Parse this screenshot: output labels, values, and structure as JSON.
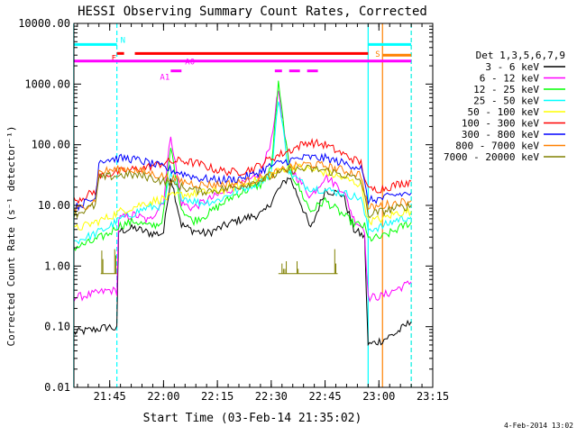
{
  "chart_data": {
    "type": "line",
    "title": "HESSI Observing Summary Count Rates, Corrected",
    "xlabel": "Start Time (03-Feb-14 21:35:02)",
    "ylabel": "Corrected Count Rate (s⁻¹ detector⁻¹)",
    "xlim": [
      "21:35:02",
      "23:15"
    ],
    "ylim": [
      0.01,
      10000
    ],
    "yscale": "log",
    "x_ticks": [
      "21:45",
      "22:00",
      "22:15",
      "22:30",
      "22:45",
      "23:00",
      "23:15"
    ],
    "y_ticks": [
      "0.01",
      "0.10",
      "1.00",
      "10.00",
      "100.00",
      "1000.00",
      "10000.00"
    ],
    "legend_title": "Det 1,3,5,6,7,9",
    "legend_position": "right",
    "timestamp": "4-Feb-2014 13:02",
    "series": [
      {
        "name": "3 - 6 keV",
        "color": "#000000",
        "x": [
          "21:35",
          "21:41",
          "21:45",
          "21:47",
          "21:47.5",
          "21:52",
          "21:56",
          "21:59",
          "22:00",
          "22:02",
          "22:05",
          "22:08",
          "22:12",
          "22:20",
          "22:28",
          "22:32",
          "22:35",
          "22:38",
          "22:41",
          "22:45",
          "22:50",
          "22:53",
          "22:56",
          "22:57",
          "23:01",
          "23:05",
          "23:08",
          "23:09"
        ],
        "y": [
          0.08,
          0.09,
          0.1,
          0.09,
          3.8,
          4.2,
          3.5,
          3.4,
          3.6,
          30,
          4.8,
          3.9,
          3.4,
          5.5,
          7.5,
          18,
          30,
          12,
          4,
          18,
          15,
          4,
          3,
          0.05,
          0.06,
          0.08,
          0.11,
          0.12
        ]
      },
      {
        "name": "6 - 12 keV",
        "color": "#ff00ff",
        "x": [
          "21:35",
          "21:41",
          "21:45",
          "21:47",
          "21:47.5",
          "21:52",
          "21:56",
          "21:59",
          "22:00",
          "22:02",
          "22:05",
          "22:08",
          "22:12",
          "22:20",
          "22:27",
          "22:30",
          "22:32",
          "22:35",
          "22:38",
          "22:41",
          "22:45",
          "22:50",
          "22:53",
          "22:56",
          "22:57",
          "23:01",
          "23:05",
          "23:08",
          "23:09"
        ],
        "y": [
          0.3,
          0.35,
          0.4,
          0.38,
          6,
          7,
          5.5,
          10,
          12,
          150,
          11,
          9,
          12,
          20,
          30,
          120,
          800,
          45,
          25,
          14,
          30,
          18,
          6,
          4,
          0.3,
          0.32,
          0.42,
          0.5,
          0.55
        ]
      },
      {
        "name": "12 - 25 keV",
        "color": "#00ff00",
        "x": [
          "21:35",
          "21:40",
          "21:45",
          "21:47",
          "21:52",
          "21:56",
          "21:59",
          "22:00",
          "22:02",
          "22:05",
          "22:08",
          "22:12",
          "22:20",
          "22:27",
          "22:30",
          "22:32",
          "22:35",
          "22:38",
          "22:41",
          "22:45",
          "22:50",
          "22:53",
          "22:56",
          "22:57",
          "23:01",
          "23:05",
          "23:08",
          "23:09"
        ],
        "y": [
          2,
          2.5,
          3.5,
          4.5,
          5.5,
          4.5,
          5,
          7,
          90,
          9,
          5.5,
          7,
          15,
          22,
          40,
          1000,
          40,
          18,
          8,
          12,
          7,
          5,
          4.5,
          2.8,
          3,
          4,
          5,
          5.2
        ]
      },
      {
        "name": "25 - 50 keV",
        "color": "#00ffff",
        "x": [
          "21:35",
          "21:40",
          "21:45",
          "21:48",
          "21:55",
          "22:00",
          "22:02",
          "22:05",
          "22:10",
          "22:15",
          "22:20",
          "22:25",
          "22:30",
          "22:32",
          "22:35",
          "22:40",
          "22:45",
          "22:50",
          "22:55",
          "22:57",
          "23:01",
          "23:05",
          "23:09"
        ],
        "y": [
          2.5,
          3.2,
          4.5,
          6,
          9,
          10,
          30,
          14,
          11,
          12,
          17,
          22,
          32,
          600,
          35,
          20,
          18,
          16,
          13,
          4,
          4.5,
          5.8,
          6.5
        ]
      },
      {
        "name": "50 - 100 keV",
        "color": "#ffff00",
        "x": [
          "21:35",
          "21:40",
          "21:45",
          "21:48",
          "21:55",
          "22:00",
          "22:05",
          "22:10",
          "22:15",
          "22:20",
          "22:25",
          "22:30",
          "22:35",
          "22:40",
          "22:45",
          "22:50",
          "22:55",
          "22:57",
          "23:01",
          "23:05",
          "23:09"
        ],
        "y": [
          4,
          5,
          6.5,
          8,
          11,
          13,
          15,
          16,
          17,
          20,
          25,
          32,
          45,
          40,
          35,
          28,
          22,
          5.5,
          6,
          7.5,
          8
        ]
      },
      {
        "name": "100 - 300 keV",
        "color": "#ff0000",
        "x": [
          "21:35",
          "21:38",
          "21:41",
          "21:42",
          "21:45",
          "21:50",
          "21:55",
          "22:00",
          "22:05",
          "22:10",
          "22:15",
          "22:20",
          "22:25",
          "22:30",
          "22:35",
          "22:40",
          "22:45",
          "22:50",
          "22:55",
          "22:57",
          "23:01",
          "23:05",
          "23:09"
        ],
        "y": [
          12,
          14,
          17,
          30,
          33,
          38,
          42,
          50,
          55,
          48,
          38,
          35,
          40,
          60,
          80,
          110,
          100,
          70,
          50,
          18,
          19,
          22,
          25
        ]
      },
      {
        "name": "300 - 800 keV",
        "color": "#0000ff",
        "x": [
          "21:35",
          "21:38",
          "21:41",
          "21:42",
          "21:45",
          "21:50",
          "21:55",
          "22:00",
          "22:05",
          "22:10",
          "22:15",
          "22:20",
          "22:25",
          "22:30",
          "22:35",
          "22:40",
          "22:45",
          "22:50",
          "22:55",
          "22:57",
          "23:01",
          "23:05",
          "23:09"
        ],
        "y": [
          9,
          11,
          13,
          55,
          58,
          60,
          52,
          42,
          34,
          28,
          26,
          27,
          32,
          45,
          55,
          62,
          60,
          50,
          42,
          12,
          13,
          15,
          16
        ]
      },
      {
        "name": "800 - 7000 keV",
        "color": "#ff8000",
        "x": [
          "21:35",
          "21:41",
          "21:42",
          "21:45",
          "21:50",
          "21:55",
          "22:00",
          "22:05",
          "22:10",
          "22:15",
          "22:20",
          "22:25",
          "22:30",
          "22:35",
          "22:40",
          "22:45",
          "22:50",
          "22:55",
          "22:57",
          "23:01",
          "23:05",
          "23:09"
        ],
        "y": [
          8,
          12,
          35,
          38,
          40,
          35,
          30,
          25,
          22,
          22,
          23,
          26,
          32,
          42,
          48,
          45,
          38,
          32,
          9,
          10,
          11,
          12
        ]
      },
      {
        "name": "7000 - 20000 keV",
        "color": "#808000",
        "x": [
          "21:35",
          "21:41",
          "21:42",
          "21:45",
          "21:50",
          "21:55",
          "22:00",
          "22:05",
          "22:10",
          "22:15",
          "22:20",
          "22:25",
          "22:30",
          "22:35",
          "22:40",
          "22:45",
          "22:50",
          "22:55",
          "22:57",
          "23:01",
          "23:05",
          "23:09"
        ],
        "y": [
          7,
          10,
          28,
          30,
          32,
          30,
          25,
          20,
          17,
          18,
          20,
          24,
          30,
          38,
          40,
          38,
          32,
          26,
          7,
          8,
          9,
          10
        ]
      }
    ],
    "spikes": {
      "color": "#808000",
      "baseline": 0.75,
      "x": [
        "21:42.8",
        "21:43.1",
        "21:46.4",
        "21:46.7",
        "22:33",
        "22:33.4",
        "22:33.8",
        "22:34.2",
        "22:37.2",
        "22:37.5",
        "22:47.7",
        "22:48"
      ],
      "y": [
        1.8,
        1.3,
        1.9,
        1.5,
        1.1,
        0.9,
        0.9,
        1.2,
        1.2,
        0.9,
        1.9,
        1.1
      ]
    },
    "flag_bars": [
      {
        "label": "N",
        "color": "#00ffff",
        "level": 4500,
        "spans": [
          [
            "21:35",
            "21:47"
          ],
          [
            "22:57",
            "23:09"
          ]
        ]
      },
      {
        "label": "F",
        "color": "#ff0000",
        "level": 3200,
        "spans": [
          [
            "21:47",
            "21:49"
          ],
          [
            "21:52",
            "22:57"
          ]
        ]
      },
      {
        "label": "S",
        "color": "#ff8000",
        "level": 3000,
        "spans": [
          [
            "23:01",
            "23:09"
          ]
        ]
      },
      {
        "label": "A0",
        "color": "#ff00ff",
        "level": 2400,
        "spans": [
          [
            "21:35",
            "23:09"
          ]
        ]
      },
      {
        "label": "A1",
        "color": "#ff00ff",
        "level": 1650,
        "spans": [
          [
            "22:02",
            "22:05"
          ],
          [
            "22:31",
            "22:33"
          ],
          [
            "22:35",
            "22:38"
          ],
          [
            "22:40",
            "22:43"
          ]
        ]
      }
    ],
    "vertical_markers": [
      {
        "x": "21:35",
        "color": "#00ffff",
        "style": "solid"
      },
      {
        "x": "21:47",
        "color": "#00ffff",
        "style": "dashed"
      },
      {
        "x": "22:57",
        "color": "#00ffff",
        "style": "solid"
      },
      {
        "x": "23:01",
        "color": "#ff8000",
        "style": "solid"
      },
      {
        "x": "23:09",
        "color": "#ff8000",
        "style": "dashed"
      },
      {
        "x": "23:09",
        "color": "#00ffff",
        "style": "dashed"
      }
    ]
  }
}
